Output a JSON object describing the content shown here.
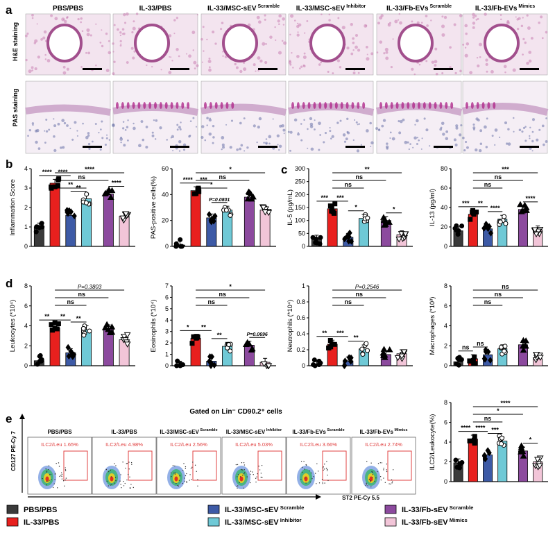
{
  "colors": {
    "PBS/PBS": "#3a3a3a",
    "IL-33/PBS": "#e8201e",
    "IL-33/MSC-sEV Scramble": "#3d5aa6",
    "IL-33/MSC-sEV Inhibitor": "#6fc9d6",
    "IL-33/Fb-EVs Scramble": "#8c4a9e",
    "IL-33/Fb-EVs Mimics": "#f2c5d8",
    "he_tissue": "#c97fb3",
    "pas_tissue": "#dcb5d4",
    "flow_box": "#e04040"
  },
  "panel_letters": [
    "a",
    "b",
    "c",
    "d",
    "e"
  ],
  "histology": {
    "columns": [
      {
        "main": "PBS/PBS",
        "sup": ""
      },
      {
        "main": "IL-33/PBS",
        "sup": ""
      },
      {
        "main": "IL-33/MSC-sEV",
        "sup": "Scramble"
      },
      {
        "main": "IL-33/MSC-sEV",
        "sup": "Inhibitor"
      },
      {
        "main": "IL-33/Fb-EVs",
        "sup": "Scramble"
      },
      {
        "main": "IL-33/Fb-EVs",
        "sup": "Mimics"
      }
    ],
    "row_labels": [
      "H&E staining",
      "PAS staining"
    ]
  },
  "chart_data": [
    {
      "id": "inflammation",
      "type": "bar",
      "ylabel": "Inflammation Score",
      "ylim": [
        0,
        4
      ],
      "yticks": [
        0,
        1,
        2,
        3,
        4
      ],
      "categories": [
        "PBS/PBS",
        "IL-33/PBS",
        "IL-33/MSC-sEV Scramble",
        "IL-33/MSC-sEV Inhibitor",
        "IL-33/Fb-EVs Scramble",
        "IL-33/Fb-EVs Mimics"
      ],
      "values": [
        1.0,
        3.25,
        1.6,
        2.45,
        2.7,
        1.55
      ],
      "sig_adjacent": [
        {
          "from": 0,
          "to": 1,
          "label": "****"
        },
        {
          "from": 1,
          "to": 2,
          "label": "****"
        },
        {
          "from": 2,
          "to": 3,
          "label": "**"
        },
        {
          "from": 4,
          "to": 5,
          "label": "****"
        }
      ],
      "sig_brackets": [
        {
          "from": 1,
          "to": 5,
          "label": "****"
        },
        {
          "from": 1,
          "to": 4,
          "label": "ns"
        },
        {
          "from": 1,
          "to": 3,
          "label": "**"
        }
      ]
    },
    {
      "id": "pas",
      "type": "bar",
      "ylabel": "PAS-positive cells(%)",
      "ylim": [
        0,
        60
      ],
      "yticks": [
        0,
        20,
        40,
        60
      ],
      "categories": [
        "PBS/PBS",
        "IL-33/PBS",
        "IL-33/MSC-sEV Scramble",
        "IL-33/MSC-sEV Inhibitor",
        "IL-33/Fb-EVs Scramble",
        "IL-33/Fb-EVs Mimics"
      ],
      "values": [
        1,
        43,
        22,
        28,
        38,
        28
      ],
      "sig_adjacent": [
        {
          "from": 0,
          "to": 1,
          "label": "****"
        },
        {
          "from": 1,
          "to": 2,
          "label": "***"
        },
        {
          "from": 2,
          "to": 3,
          "label": "P=0.0801"
        }
      ],
      "sig_brackets": [
        {
          "from": 1,
          "to": 5,
          "label": "*"
        },
        {
          "from": 1,
          "to": 4,
          "label": "ns"
        },
        {
          "from": 1,
          "to": 3,
          "label": "*"
        }
      ]
    },
    {
      "id": "il5",
      "type": "bar",
      "ylabel": "IL-5 (pg/mL)",
      "ylim": [
        0,
        300
      ],
      "yticks": [
        0,
        50,
        100,
        150,
        200,
        250,
        300
      ],
      "categories": [
        "PBS/PBS",
        "IL-33/PBS",
        "IL-33/MSC-sEV Scramble",
        "IL-33/MSC-sEV Inhibitor",
        "IL-33/Fb-EVs Scramble",
        "IL-33/Fb-EVs Mimics"
      ],
      "values": [
        28,
        145,
        35,
        108,
        100,
        45
      ],
      "sig_adjacent": [
        {
          "from": 0,
          "to": 1,
          "label": "***"
        },
        {
          "from": 1,
          "to": 2,
          "label": "***"
        },
        {
          "from": 2,
          "to": 3,
          "label": "*"
        },
        {
          "from": 4,
          "to": 5,
          "label": "*"
        }
      ],
      "sig_brackets": [
        {
          "from": 1,
          "to": 5,
          "label": "**"
        },
        {
          "from": 1,
          "to": 4,
          "label": "ns"
        },
        {
          "from": 1,
          "to": 3,
          "label": "ns"
        }
      ]
    },
    {
      "id": "il13",
      "type": "bar",
      "ylabel": "IL-13 (pg/ml)",
      "ylim": [
        0,
        80
      ],
      "yticks": [
        0,
        20,
        40,
        60,
        80
      ],
      "categories": [
        "PBS/PBS",
        "IL-33/PBS",
        "IL-33/MSC-sEV Scramble",
        "IL-33/MSC-sEV Inhibitor",
        "IL-33/Fb-EVs Scramble",
        "IL-33/Fb-EVs Mimics"
      ],
      "values": [
        16,
        33,
        18,
        28,
        38,
        17
      ],
      "sig_adjacent": [
        {
          "from": 0,
          "to": 1,
          "label": "***"
        },
        {
          "from": 1,
          "to": 2,
          "label": "**"
        },
        {
          "from": 2,
          "to": 3,
          "label": "****"
        },
        {
          "from": 4,
          "to": 5,
          "label": "****"
        }
      ],
      "sig_brackets": [
        {
          "from": 1,
          "to": 5,
          "label": "***"
        },
        {
          "from": 1,
          "to": 4,
          "label": "ns"
        },
        {
          "from": 1,
          "to": 3,
          "label": "ns"
        }
      ]
    },
    {
      "id": "leuko",
      "type": "bar",
      "ylabel": "Leukocytes (*10⁴)",
      "ylim": [
        0,
        8
      ],
      "yticks": [
        0,
        2,
        4,
        6,
        8
      ],
      "categories": [
        "PBS/PBS",
        "IL-33/PBS",
        "IL-33/MSC-sEV Scramble",
        "IL-33/MSC-sEV Inhibitor",
        "IL-33/Fb-EVs Scramble",
        "IL-33/Fb-EVs Mimics"
      ],
      "values": [
        0.5,
        3.8,
        1.3,
        3.6,
        3.7,
        2.6
      ],
      "sig_adjacent": [
        {
          "from": 0,
          "to": 1,
          "label": "**"
        },
        {
          "from": 1,
          "to": 2,
          "label": "**"
        },
        {
          "from": 2,
          "to": 3,
          "label": "**"
        }
      ],
      "sig_brackets": [
        {
          "from": 1,
          "to": 5,
          "label": "P=0.3803"
        },
        {
          "from": 1,
          "to": 4,
          "label": "ns"
        },
        {
          "from": 1,
          "to": 3,
          "label": "ns"
        }
      ]
    },
    {
      "id": "eos",
      "type": "bar",
      "ylabel": "Eosinophils (*10⁴)",
      "ylim": [
        0,
        7
      ],
      "yticks": [
        0,
        1,
        2,
        3,
        4,
        5,
        6,
        7
      ],
      "categories": [
        "PBS/PBS",
        "IL-33/PBS",
        "IL-33/MSC-sEV Scramble",
        "IL-33/MSC-sEV Inhibitor",
        "IL-33/Fb-EVs Scramble",
        "IL-33/Fb-EVs Mimics"
      ],
      "values": [
        0.05,
        2.4,
        0.4,
        1.7,
        1.8,
        0.3
      ],
      "sig_adjacent": [
        {
          "from": 0,
          "to": 1,
          "label": "*"
        },
        {
          "from": 1,
          "to": 2,
          "label": "**"
        },
        {
          "from": 2,
          "to": 3,
          "label": "**"
        },
        {
          "from": 4,
          "to": 5,
          "label": "P=0.0696"
        }
      ],
      "sig_brackets": [
        {
          "from": 1,
          "to": 5,
          "label": "*"
        },
        {
          "from": 1,
          "to": 4,
          "label": "ns"
        },
        {
          "from": 1,
          "to": 3,
          "label": "ns"
        }
      ]
    },
    {
      "id": "neut",
      "type": "bar",
      "ylabel": "Neutrophils (*10⁴)",
      "ylim": [
        0,
        1.0
      ],
      "yticks": [
        0.0,
        0.2,
        0.4,
        0.6,
        0.8,
        1.0
      ],
      "categories": [
        "PBS/PBS",
        "IL-33/PBS",
        "IL-33/MSC-sEV Scramble",
        "IL-33/MSC-sEV Inhibitor",
        "IL-33/Fb-EVs Scramble",
        "IL-33/Fb-EVs Mimics"
      ],
      "values": [
        0.01,
        0.27,
        0.06,
        0.21,
        0.14,
        0.15
      ],
      "sig_adjacent": [
        {
          "from": 0,
          "to": 1,
          "label": "**"
        },
        {
          "from": 1,
          "to": 2,
          "label": "***"
        },
        {
          "from": 2,
          "to": 3,
          "label": "**"
        }
      ],
      "sig_brackets": [
        {
          "from": 1,
          "to": 5,
          "label": "P=0.2546"
        },
        {
          "from": 1,
          "to": 4,
          "label": "ns"
        },
        {
          "from": 1,
          "to": 3,
          "label": "ns"
        }
      ]
    },
    {
      "id": "macro",
      "type": "bar",
      "ylabel": "Macrophages (*10³)",
      "ylim": [
        0,
        8
      ],
      "yticks": [
        0,
        2,
        4,
        6,
        8
      ],
      "categories": [
        "PBS/PBS",
        "IL-33/PBS",
        "IL-33/MSC-sEV Scramble",
        "IL-33/MSC-sEV Inhibitor",
        "IL-33/Fb-EVs Scramble",
        "IL-33/Fb-EVs Mimics"
      ],
      "values": [
        0.4,
        0.7,
        1.1,
        1.7,
        2.1,
        0.7
      ],
      "sig_adjacent": [
        {
          "from": 0,
          "to": 1,
          "label": "ns"
        },
        {
          "from": 1,
          "to": 2,
          "label": "ns"
        }
      ],
      "sig_brackets": [
        {
          "from": 1,
          "to": 5,
          "label": "ns"
        },
        {
          "from": 1,
          "to": 4,
          "label": "ns"
        },
        {
          "from": 1,
          "to": 3,
          "label": "ns"
        }
      ]
    },
    {
      "id": "ilc2",
      "type": "bar",
      "ylabel": "ILC2/Leukocyte(%)",
      "ylim": [
        0,
        8
      ],
      "yticks": [
        0,
        2,
        4,
        6,
        8
      ],
      "categories": [
        "PBS/PBS",
        "IL-33/PBS",
        "IL-33/MSC-sEV Scramble",
        "IL-33/MSC-sEV Inhibitor",
        "IL-33/Fb-EVs Scramble",
        "IL-33/Fb-EVs Mimics"
      ],
      "values": [
        1.9,
        4.3,
        2.7,
        4.1,
        3.1,
        2.0
      ],
      "sig_adjacent": [
        {
          "from": 0,
          "to": 1,
          "label": "****"
        },
        {
          "from": 1,
          "to": 2,
          "label": "****"
        },
        {
          "from": 2,
          "to": 3,
          "label": "***"
        },
        {
          "from": 4,
          "to": 5,
          "label": "*"
        }
      ],
      "sig_brackets": [
        {
          "from": 1,
          "to": 5,
          "label": "****"
        },
        {
          "from": 1,
          "to": 4,
          "label": "*"
        },
        {
          "from": 1,
          "to": 3,
          "label": "ns"
        }
      ]
    }
  ],
  "flow": {
    "gated_title": "Gated on Lin⁻ CD90.2⁺ cells",
    "y_axis": "CD127 PE-Cy 7",
    "x_axis": "ST2 PE-Cy 5.5",
    "panels": [
      {
        "title": "PBS/PBS",
        "sup": "",
        "gate": "ILC2/Leu 1.65%"
      },
      {
        "title": "IL-33/PBS",
        "sup": "",
        "gate": "ILC2/Leu 4.98%"
      },
      {
        "title": "IL-33/MSC-sEV",
        "sup": "Scramble",
        "gate": "ILC2/Leu 2.56%"
      },
      {
        "title": "IL-33/MSC-sEV",
        "sup": "Inhibitor",
        "gate": "ILC2/Leu 5.03%"
      },
      {
        "title": "IL-33/Fb-EVs",
        "sup": "Scramble",
        "gate": "ILC2/Leu 3.66%"
      },
      {
        "title": "IL-33/Fb-EVs",
        "sup": "Mimics",
        "gate": "ILC2/Leu 2.74%"
      }
    ]
  },
  "legend": [
    {
      "main": "PBS/PBS",
      "sup": ""
    },
    {
      "main": "IL-33/PBS",
      "sup": ""
    },
    {
      "main": "IL-33/MSC-sEV",
      "sup": "Scramble"
    },
    {
      "main": "IL-33/MSC-sEV",
      "sup": "Inhibitor"
    },
    {
      "main": "IL-33/Fb-sEV",
      "sup": "Scramble"
    },
    {
      "main": "IL-33/Fb-sEV",
      "sup": "Mimics"
    }
  ]
}
